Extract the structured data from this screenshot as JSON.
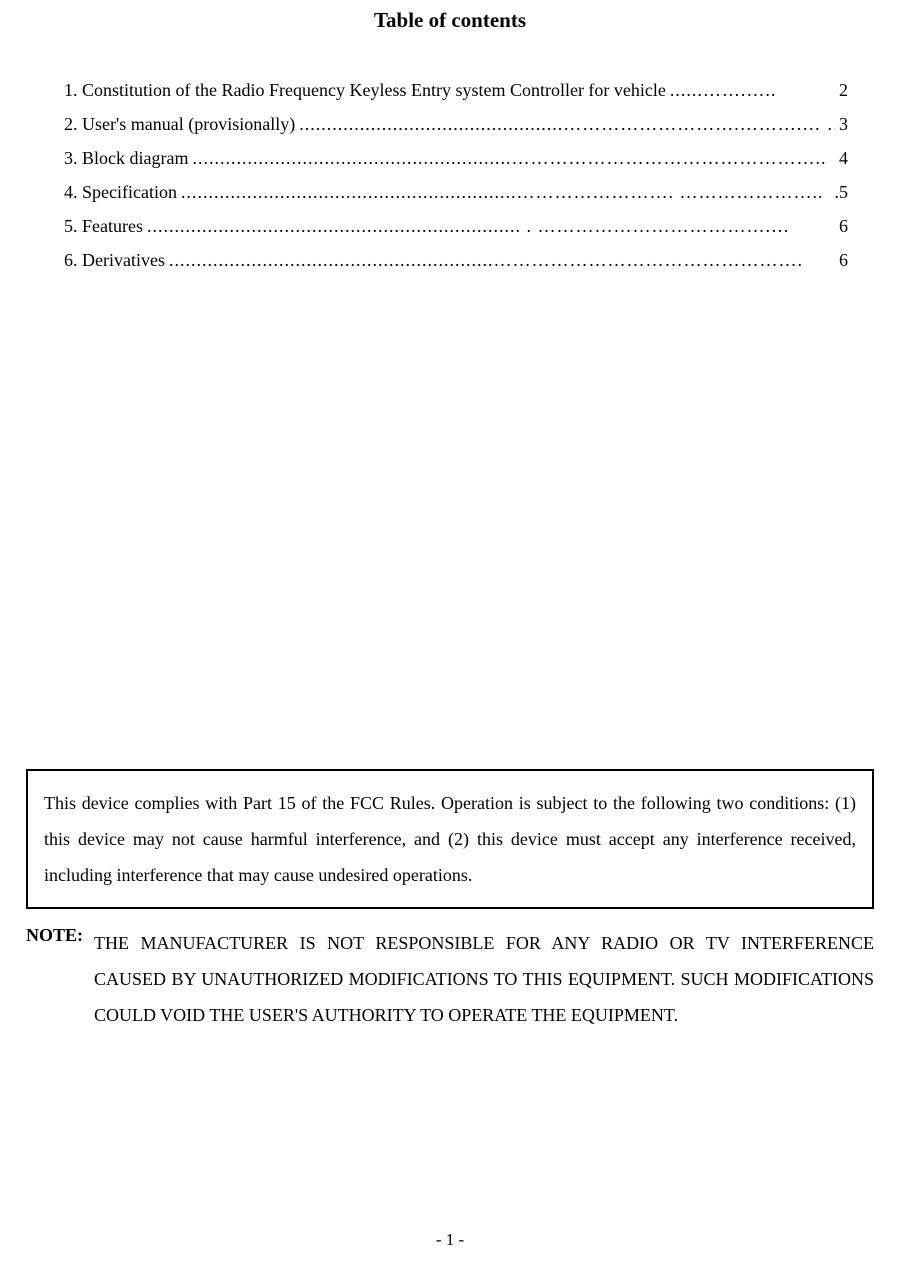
{
  "title": "Table of contents",
  "toc": {
    "items": [
      {
        "label": "1. Constitution of the Radio Frequency Keyless Entry system Controller for vehicle",
        "page": "2"
      },
      {
        "label": "2. User's manual (provisionally)",
        "page": "3"
      },
      {
        "label": "3. Block diagram",
        "page": "4"
      },
      {
        "label": "4. Specification",
        "page": ".5"
      },
      {
        "label": "5. Features",
        "page": "6"
      },
      {
        "label": "6. Derivatives",
        "page": "6"
      }
    ],
    "leaders": [
      " ......…….…..",
      " ................................................……………………….……….… …",
      " ..........................................................…………………………………………..",
      " .............................................................……………………. ………………….. ",
      " .................................................................... . ……………………………….…",
      " ...........................................................…………………………………………."
    ]
  },
  "compliance": {
    "text": "This device complies with Part 15 of the FCC Rules. Operation is subject to the following two conditions: (1) this device may not cause harmful interference, and (2) this device must accept any interference received, including interference that may cause undesired operations."
  },
  "note": {
    "label": "NOTE:",
    "body": "THE MANUFACTURER IS NOT RESPONSIBLE FOR ANY RADIO OR TV INTERFERENCE CAUSED BY UNAUTHORIZED MODIFICATIONS TO THIS EQUIPMENT. SUCH MODIFICATIONS COULD VOID THE USER'S AUTHORITY TO OPERATE THE EQUIPMENT."
  },
  "pageNumber": "- 1 -",
  "colors": {
    "background": "#ffffff",
    "text": "#000000",
    "border": "#000000"
  },
  "typography": {
    "title_fontsize": 21,
    "body_fontsize": 18,
    "pagenum_fontsize": 17,
    "font_family": "Times New Roman"
  }
}
